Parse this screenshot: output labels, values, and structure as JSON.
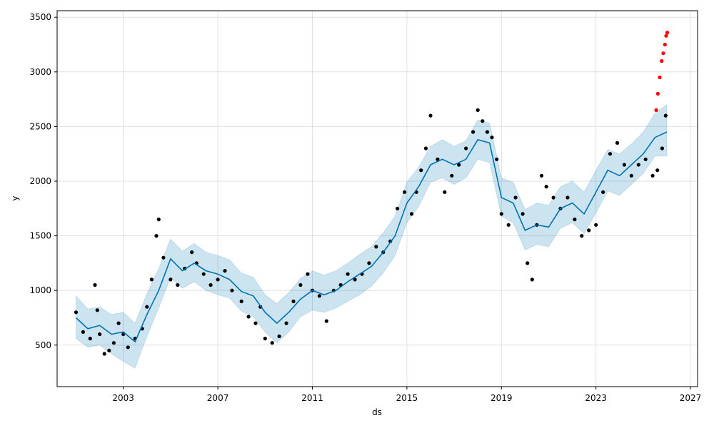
{
  "chart_data": {
    "type": "line",
    "title": "",
    "xlabel": "ds",
    "ylabel": "y",
    "grid": true,
    "legend": "none",
    "xlim": [
      2000.2,
      2027.3
    ],
    "ylim": [
      120,
      3560
    ],
    "x_ticks": [
      2003,
      2007,
      2011,
      2015,
      2019,
      2023,
      2027
    ],
    "y_ticks": [
      500,
      1000,
      1500,
      2000,
      2500,
      3000,
      3500
    ],
    "colors": {
      "forecast": "#0072B2",
      "interval": "#0072B2",
      "observed": "#000000",
      "outliers": "#ff0000",
      "grid": "#e0e0e0"
    },
    "series": [
      {
        "name": "",
        "kind": "forecast",
        "x": [
          2001.0,
          2001.5,
          2002.0,
          2002.5,
          2003.0,
          2003.5,
          2004.0,
          2004.5,
          2005.0,
          2005.5,
          2006.0,
          2006.5,
          2007.0,
          2007.5,
          2008.0,
          2008.5,
          2009.0,
          2009.5,
          2010.0,
          2010.5,
          2011.0,
          2011.5,
          2012.0,
          2012.5,
          2013.0,
          2013.5,
          2014.0,
          2014.5,
          2015.0,
          2015.5,
          2016.0,
          2016.5,
          2017.0,
          2017.5,
          2018.0,
          2018.5,
          2019.0,
          2019.5,
          2020.0,
          2020.5,
          2021.0,
          2021.5,
          2022.0,
          2022.5,
          2023.0,
          2023.5,
          2024.0,
          2024.5,
          2025.0,
          2025.5,
          2026.0
        ],
        "yhat": [
          750,
          650,
          680,
          600,
          620,
          530,
          780,
          1000,
          1290,
          1180,
          1250,
          1180,
          1150,
          1100,
          990,
          950,
          800,
          700,
          800,
          920,
          1000,
          960,
          1000,
          1080,
          1150,
          1220,
          1350,
          1500,
          1800,
          1950,
          2150,
          2200,
          2150,
          2200,
          2380,
          2350,
          1850,
          1800,
          1550,
          1600,
          1580,
          1750,
          1800,
          1700,
          1900,
          2100,
          2050,
          2150,
          2250,
          2400,
          2450
        ],
        "lower": [
          560,
          480,
          500,
          420,
          350,
          290,
          580,
          840,
          1120,
          1020,
          1080,
          1000,
          960,
          930,
          810,
          760,
          620,
          520,
          620,
          760,
          820,
          800,
          840,
          900,
          960,
          1040,
          1160,
          1320,
          1620,
          1770,
          1990,
          2030,
          1970,
          2030,
          2200,
          2170,
          1680,
          1620,
          1370,
          1420,
          1400,
          1570,
          1620,
          1520,
          1710,
          1910,
          1870,
          1970,
          2070,
          2230,
          2230
        ],
        "upper": [
          950,
          830,
          850,
          780,
          800,
          700,
          970,
          1200,
          1470,
          1360,
          1430,
          1350,
          1320,
          1280,
          1160,
          1120,
          960,
          880,
          980,
          1110,
          1180,
          1140,
          1180,
          1250,
          1330,
          1400,
          1530,
          1680,
          1990,
          2130,
          2320,
          2380,
          2320,
          2370,
          2560,
          2530,
          2030,
          1990,
          1740,
          1800,
          1780,
          1950,
          2000,
          1900,
          2100,
          2290,
          2250,
          2340,
          2450,
          2620,
          2700
        ]
      },
      {
        "name": "",
        "kind": "observed",
        "x": [
          2001.0,
          2001.3,
          2001.6,
          2001.8,
          2001.9,
          2002.0,
          2002.2,
          2002.4,
          2002.6,
          2002.8,
          2003.0,
          2003.2,
          2003.5,
          2003.8,
          2004.0,
          2004.2,
          2004.4,
          2004.5,
          2004.7,
          2005.0,
          2005.3,
          2005.6,
          2005.9,
          2006.1,
          2006.4,
          2006.7,
          2007.0,
          2007.3,
          2007.6,
          2008.0,
          2008.3,
          2008.6,
          2008.8,
          2009.0,
          2009.3,
          2009.6,
          2009.9,
          2010.2,
          2010.5,
          2010.8,
          2011.0,
          2011.3,
          2011.6,
          2011.9,
          2012.2,
          2012.5,
          2012.8,
          2013.1,
          2013.4,
          2013.7,
          2014.0,
          2014.3,
          2014.6,
          2014.9,
          2015.2,
          2015.4,
          2015.6,
          2015.8,
          2016.0,
          2016.3,
          2016.6,
          2016.9,
          2017.2,
          2017.5,
          2017.8,
          2018.0,
          2018.2,
          2018.4,
          2018.6,
          2018.8,
          2019.0,
          2019.3,
          2019.6,
          2019.9,
          2020.1,
          2020.3,
          2020.5,
          2020.7,
          2020.9,
          2021.2,
          2021.5,
          2021.8,
          2022.1,
          2022.4,
          2022.7,
          2023.0,
          2023.3,
          2023.6,
          2023.9,
          2024.2,
          2024.5,
          2024.8,
          2025.1,
          2025.4,
          2025.6,
          2025.8,
          2025.95
        ],
        "values": [
          800,
          620,
          560,
          1050,
          820,
          600,
          420,
          450,
          520,
          700,
          600,
          480,
          560,
          650,
          850,
          1100,
          1500,
          1650,
          1300,
          1100,
          1050,
          1200,
          1350,
          1250,
          1150,
          1050,
          1100,
          1180,
          1000,
          900,
          760,
          700,
          850,
          560,
          520,
          580,
          700,
          900,
          1050,
          1150,
          1000,
          950,
          720,
          1000,
          1050,
          1150,
          1100,
          1150,
          1250,
          1400,
          1350,
          1450,
          1750,
          1900,
          1700,
          1900,
          2100,
          2300,
          2600,
          2200,
          1900,
          2050,
          2150,
          2300,
          2450,
          2650,
          2550,
          2450,
          2400,
          2200,
          1700,
          1600,
          1850,
          1700,
          1250,
          1100,
          1600,
          2050,
          1950,
          1850,
          1750,
          1850,
          1650,
          1500,
          1550,
          1600,
          1900,
          2250,
          2350,
          2150,
          2050,
          2150,
          2200,
          2050,
          2100,
          2300,
          2600
        ],
        "color": "#000000"
      },
      {
        "name": "",
        "kind": "outliers",
        "x": [
          2025.55,
          2025.62,
          2025.7,
          2025.78,
          2025.85,
          2025.92,
          2025.97,
          2026.02
        ],
        "values": [
          2650,
          2800,
          2950,
          3100,
          3170,
          3250,
          3330,
          3360
        ],
        "color": "#ff0000"
      }
    ]
  }
}
